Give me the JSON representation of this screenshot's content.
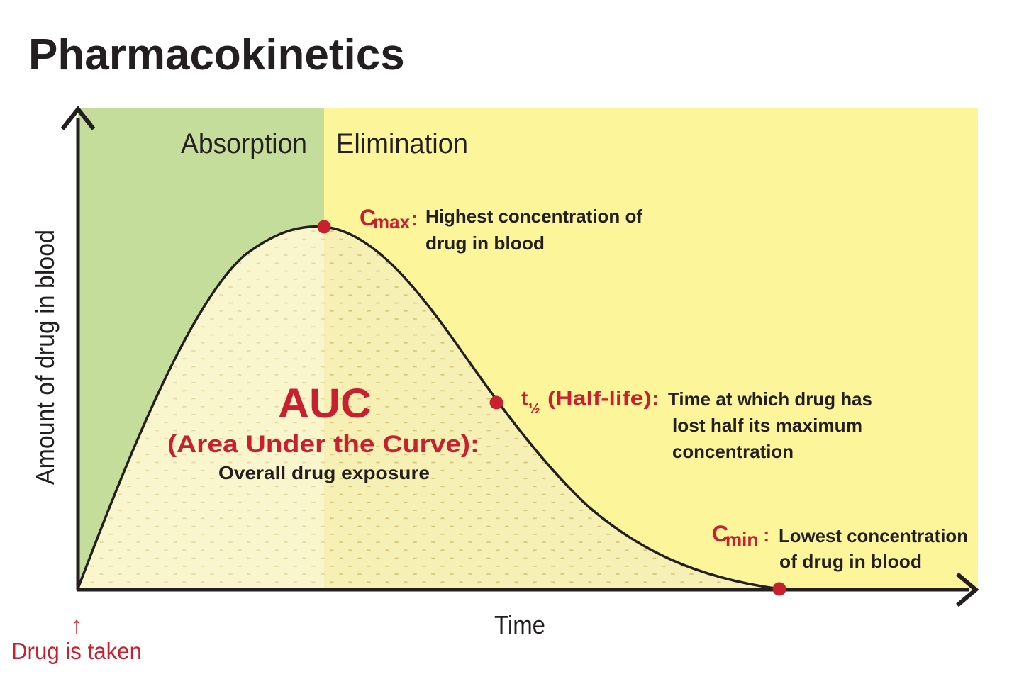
{
  "title": "Pharmacokinetics",
  "axes": {
    "y_label": "Amount of drug in blood",
    "x_label": "Time"
  },
  "phases": {
    "absorption": "Absorption",
    "elimination": "Elimination"
  },
  "auc": {
    "heading": "AUC",
    "subheading": "(Area Under the Curve):",
    "description": "Overall drug exposure"
  },
  "cmax": {
    "symbol_base": "C",
    "symbol_sub": "max",
    "colon": ":",
    "desc_line1": "Highest concentration of",
    "desc_line2": "drug in blood"
  },
  "half_life": {
    "symbol_base": "t",
    "symbol_sub": "½",
    "label": " (Half-life):",
    "desc_line1": "Time at which drug has",
    "desc_line2": "lost half its maximum",
    "desc_line3": "concentration"
  },
  "cmin": {
    "symbol_base": "C",
    "symbol_sub": "min",
    "colon": ":",
    "desc_line1": "Lowest concentration",
    "desc_line2": "of drug in blood"
  },
  "drug_taken": {
    "arrow": "↑",
    "label": "Drug is taken"
  },
  "colors": {
    "absorption_bg": "#c5dd9a",
    "elimination_bg": "#fcf59a",
    "accent_red": "#c8202f",
    "curve": "#231f20",
    "auc_pattern": "#d9c97a"
  }
}
